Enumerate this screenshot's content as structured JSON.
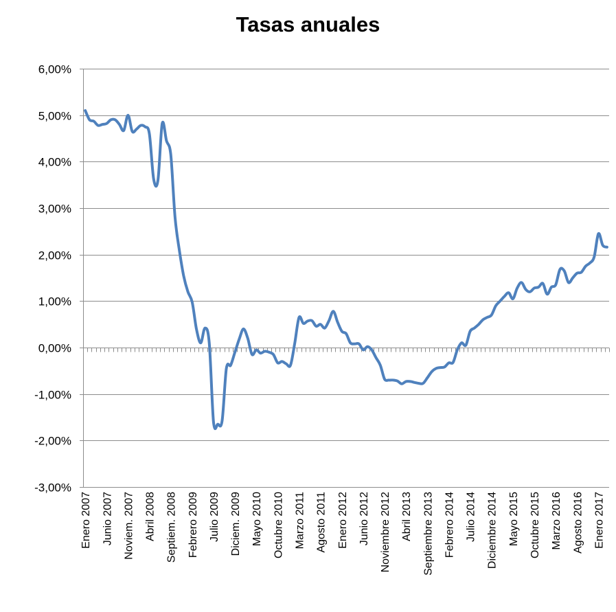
{
  "chart_data": {
    "type": "line",
    "title": "Tasas anuales",
    "xlabel": "",
    "ylabel": "",
    "ylim": [
      -3,
      6
    ],
    "y_ticks": [
      "6,00%",
      "5,00%",
      "4,00%",
      "3,00%",
      "2,00%",
      "1,00%",
      "0,00%",
      "-1,00%",
      "-2,00%",
      "-3,00%"
    ],
    "x_tick_labels": [
      "Enero 2007",
      "Junio 2007",
      "Noviem. 2007",
      "Abril 2008",
      "Septiem. 2008",
      "Febrero 2009",
      "Julio 2009",
      "Diciem. 2009",
      "Mayo 2010",
      "Octubre 2010",
      "Marzo 2011",
      "Agosto 2011",
      "Enero 2012",
      "Junio 2012",
      "Noviembre 2012",
      "Abril 2013",
      "Septiembre 2013",
      "Febrero 2014",
      "Julio 2014",
      "Diciembre 2014",
      "Mayo 2015",
      "Octubre 2015",
      "Marzo 2016",
      "Agosto 2016",
      "Enero 2017"
    ],
    "grid": true,
    "legend": "none",
    "line_color": "#4F81BD",
    "series": [
      {
        "values": [
          5.1,
          4.9,
          4.87,
          4.78,
          4.8,
          4.82,
          4.9,
          4.9,
          4.8,
          4.67,
          5.0,
          4.65,
          4.7,
          4.78,
          4.75,
          4.6,
          3.62,
          3.6,
          4.82,
          4.45,
          4.15,
          2.8,
          2.1,
          1.55,
          1.2,
          0.98,
          0.4,
          0.1,
          0.42,
          0.1,
          -1.6,
          -1.65,
          -1.58,
          -0.45,
          -0.38,
          -0.1,
          0.18,
          0.4,
          0.2,
          -0.15,
          -0.05,
          -0.12,
          -0.08,
          -0.1,
          -0.15,
          -0.33,
          -0.3,
          -0.35,
          -0.38,
          0.1,
          0.65,
          0.52,
          0.57,
          0.58,
          0.46,
          0.5,
          0.42,
          0.58,
          0.78,
          0.55,
          0.35,
          0.3,
          0.1,
          0.08,
          0.08,
          -0.05,
          0.02,
          -0.05,
          -0.22,
          -0.38,
          -0.68,
          -0.7,
          -0.7,
          -0.72,
          -0.78,
          -0.73,
          -0.73,
          -0.75,
          -0.77,
          -0.77,
          -0.65,
          -0.52,
          -0.45,
          -0.43,
          -0.42,
          -0.33,
          -0.32,
          -0.05,
          0.1,
          0.05,
          0.35,
          0.42,
          0.5,
          0.6,
          0.65,
          0.7,
          0.9,
          1.0,
          1.1,
          1.18,
          1.05,
          1.28,
          1.4,
          1.25,
          1.2,
          1.28,
          1.3,
          1.38,
          1.15,
          1.3,
          1.35,
          1.68,
          1.65,
          1.4,
          1.5,
          1.6,
          1.62,
          1.75,
          1.82,
          1.95,
          2.45,
          2.2,
          2.16
        ]
      }
    ]
  }
}
